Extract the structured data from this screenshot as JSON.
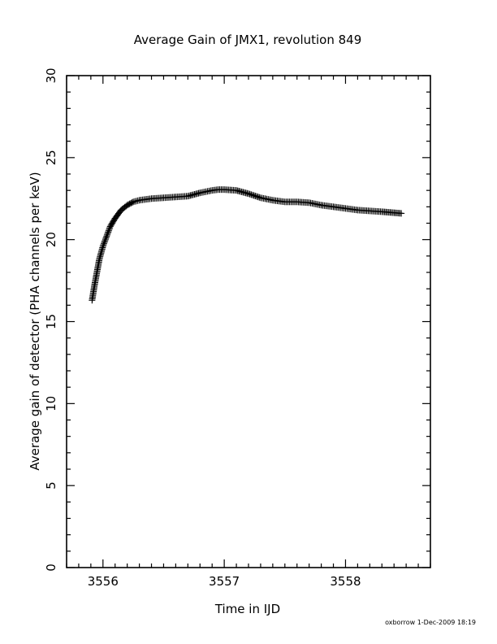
{
  "chart_data": {
    "type": "scatter",
    "marker": "+",
    "title": "Average Gain of JMX1, revolution 849",
    "xlabel": "Time in IJD",
    "ylabel": "Average gain of detector (PHA channels per keV)",
    "xlim": [
      3555.7,
      3558.7
    ],
    "ylim": [
      0,
      30
    ],
    "xticks": [
      "3556",
      "3557",
      "3558"
    ],
    "yticks": [
      "0",
      "5",
      "10",
      "15",
      "20",
      "25",
      "30"
    ],
    "x_minor_step": 0.1,
    "y_minor_step": 1,
    "grid": false,
    "footer": "oxborrow  1-Dec-2009 18:19",
    "series": [
      {
        "x": [
          3555.91,
          3555.93,
          3555.95,
          3555.97,
          3556.0,
          3556.03,
          3556.06,
          3556.1,
          3556.15,
          3556.2,
          3556.25,
          3556.3,
          3556.4,
          3556.5,
          3556.6,
          3556.7,
          3556.8,
          3556.9,
          3556.95,
          3557.0,
          3557.1,
          3557.2,
          3557.3,
          3557.4,
          3557.5,
          3557.6,
          3557.7,
          3557.8,
          3557.9,
          3558.0,
          3558.1,
          3558.2,
          3558.3,
          3558.38,
          3558.46
        ],
        "y": [
          16.3,
          17.2,
          18.0,
          18.8,
          19.6,
          20.2,
          20.8,
          21.3,
          21.8,
          22.1,
          22.3,
          22.4,
          22.5,
          22.55,
          22.6,
          22.65,
          22.85,
          23.0,
          23.05,
          23.05,
          23.0,
          22.8,
          22.55,
          22.4,
          22.3,
          22.3,
          22.25,
          22.1,
          22.0,
          21.9,
          21.8,
          21.75,
          21.7,
          21.65,
          21.6
        ]
      }
    ]
  }
}
